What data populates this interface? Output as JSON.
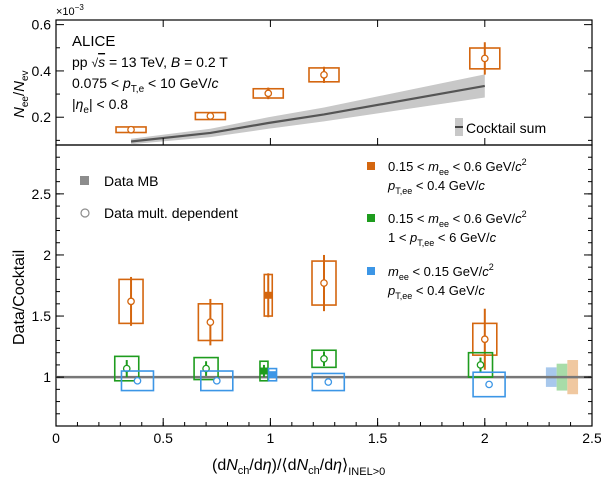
{
  "chart_data": [
    {
      "type": "scatter",
      "panel": "top",
      "ylabel_main": "N",
      "ylabel_num_sub": "ee",
      "ylabel_den_sub": "ev",
      "y_multiplier": "×10",
      "y_multiplier_exp": "−3",
      "xlim": [
        0,
        2.5
      ],
      "ylim": [
        0.08,
        0.62
      ],
      "yticks": [
        0.2,
        0.4,
        0.6
      ],
      "ytick_labels": [
        "0.2",
        "0.4",
        "0.6"
      ],
      "text_lines": [
        "ALICE",
        "pp √s = 13 TeV, B = 0.2 T",
        "0.075 < p_T,e < 10 GeV/c",
        "|η_e| < 0.8"
      ],
      "legend": [
        {
          "name": "Cocktail sum",
          "location": "bottom-right"
        }
      ],
      "data": {
        "name": "0.15 < m_ee < 0.6 GeV/c², p_T,ee < 0.4 GeV/c",
        "color": "#d4660f",
        "x": [
          0.35,
          0.72,
          0.99,
          1.25,
          2.0
        ],
        "y": [
          0.146,
          0.205,
          0.303,
          0.383,
          0.454
        ],
        "stat_err": [
          0.0,
          0.0,
          0.025,
          0.035,
          0.07
        ],
        "sys_err": [
          0.012,
          0.015,
          0.02,
          0.03,
          0.045
        ]
      },
      "cocktail": {
        "name": "Cocktail sum",
        "x": [
          0.35,
          0.72,
          0.99,
          1.25,
          2.0
        ],
        "y": [
          0.095,
          0.132,
          0.175,
          0.212,
          0.335
        ],
        "band_err": [
          0.012,
          0.018,
          0.025,
          0.03,
          0.05
        ]
      }
    },
    {
      "type": "scatter",
      "panel": "bottom",
      "xlabel": "(dN_ch/dη)/⟨dN_ch/dη⟩_INEL>0",
      "ylabel": "Data/Cocktail",
      "xlim": [
        0,
        2.5
      ],
      "ylim": [
        0.6,
        2.9
      ],
      "xticks": [
        0,
        0.5,
        1,
        1.5,
        2,
        2.5
      ],
      "xtick_labels": [
        "0",
        "0.5",
        "1",
        "1.5",
        "2",
        "2.5"
      ],
      "yticks": [
        1,
        1.5,
        2,
        2.5
      ],
      "ytick_labels": [
        "1",
        "1.5",
        "2",
        "2.5"
      ],
      "reference_line": 1,
      "legend_markers": [
        {
          "label": "Data MB",
          "marker": "filled-square",
          "color": "#8c8c8c"
        },
        {
          "label": "Data mult. dependent",
          "marker": "open-circle",
          "color": "#8c8c8c"
        }
      ],
      "series": [
        {
          "name": "0.15 < m_ee < 0.6 GeV/c², p_T,ee < 0.4 GeV/c",
          "color": "#d4660f",
          "x": [
            0.35,
            0.72,
            1.25,
            2.0
          ],
          "y": [
            1.62,
            1.45,
            1.77,
            1.31
          ],
          "stat_err": [
            0.2,
            0.19,
            0.23,
            0.25
          ],
          "sys_err": [
            0.18,
            0.15,
            0.18,
            0.13
          ],
          "mb": {
            "x": 0.99,
            "y": 1.67,
            "stat_err": 0.18,
            "sys_err": 0.17
          }
        },
        {
          "name": "0.15 < m_ee < 0.6 GeV/c², 1 < p_T,ee < 6 GeV/c",
          "color": "#1e9c1e",
          "x": [
            0.33,
            0.7,
            1.25,
            1.98
          ],
          "y": [
            1.07,
            1.07,
            1.15,
            1.1
          ],
          "stat_err": [
            0.07,
            0.06,
            0.06,
            0.06
          ],
          "sys_err": [
            0.1,
            0.09,
            0.07,
            0.1
          ],
          "mb": {
            "x": 0.97,
            "y": 1.05,
            "stat_err": 0.05,
            "sys_err": 0.08
          }
        },
        {
          "name": "m_ee < 0.15 GeV/c², p_T,ee < 0.4 GeV/c",
          "color": "#3c96e6",
          "x": [
            0.38,
            0.75,
            1.27,
            2.02
          ],
          "y": [
            0.97,
            0.97,
            0.96,
            0.94
          ],
          "stat_err": [
            0.01,
            0.01,
            0.01,
            0.01
          ],
          "sys_err": [
            0.08,
            0.08,
            0.07,
            0.1
          ],
          "mb": {
            "x": 1.01,
            "y": 1.02,
            "stat_err": 0.02,
            "sys_err": 0.05
          }
        }
      ],
      "normalization_bands": [
        {
          "color": "#a8c8ec",
          "half_height": 0.08
        },
        {
          "color": "#a8dca8",
          "half_height": 0.11
        },
        {
          "color": "#f0c8a0",
          "half_height": 0.14
        }
      ]
    }
  ]
}
